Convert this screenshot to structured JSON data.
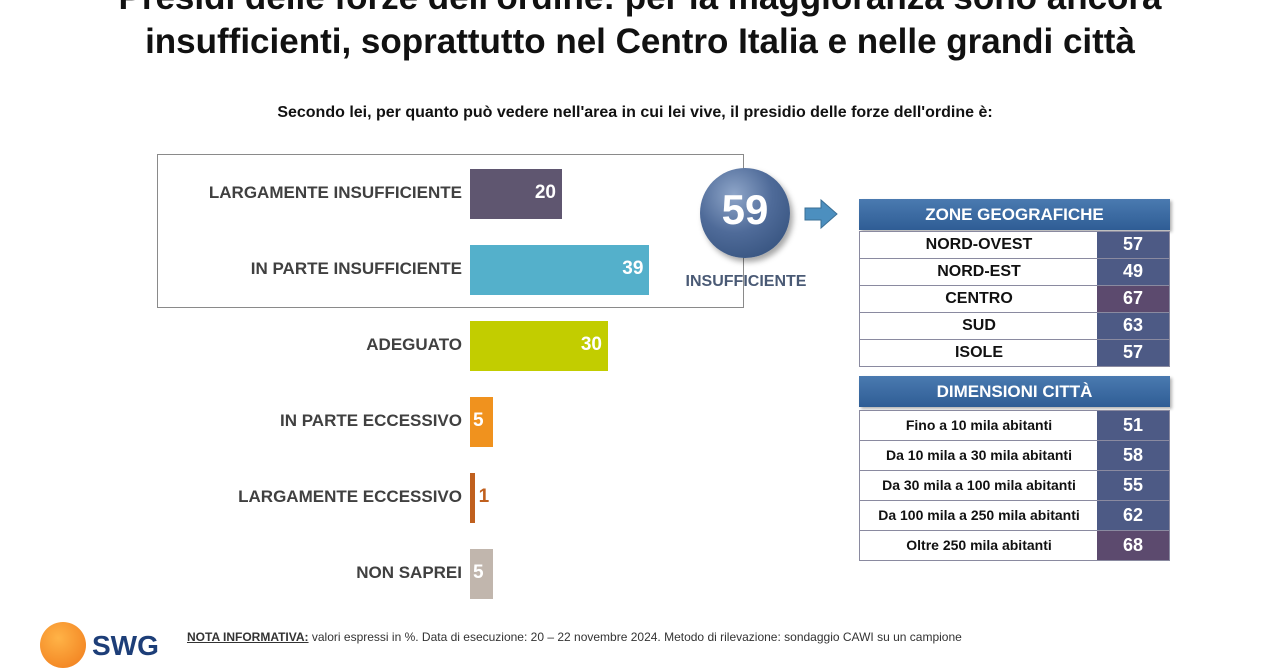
{
  "title": {
    "line1": "Presidi delle forze dell'ordine: per la maggioranza sono ancora",
    "line2": "insufficienti, soprattutto nel Centro Italia e nelle grandi città"
  },
  "question": "Secondo lei, per quanto può vedere nell'area in cui lei vive, il presidio delle forze dell'ordine è:",
  "summary": {
    "value": "59",
    "label": "INSUFFICIENTE"
  },
  "chart_data": {
    "type": "bar",
    "orientation": "horizontal",
    "title": "Secondo lei, per quanto può vedere nell'area in cui lei vive, il presidio delle forze dell'ordine è:",
    "categories": [
      "LARGAMENTE INSUFFICIENTE",
      "IN PARTE INSUFFICIENTE",
      "ADEGUATO",
      "IN PARTE ECCESSIVO",
      "LARGAMENTE ECCESSIVO",
      "NON SAPREI"
    ],
    "values": [
      20,
      39,
      30,
      5,
      1,
      5
    ],
    "value_labels": [
      "20",
      "39",
      "30",
      "5",
      "1",
      "5"
    ],
    "colors": [
      "#5f5670",
      "#54b0cb",
      "#c2cd00",
      "#f0921e",
      "#c0601e",
      "#c1b6ad"
    ],
    "unit": "%",
    "xlim": [
      0,
      45
    ],
    "xlabel": "",
    "ylabel": ""
  },
  "zones": {
    "header": "ZONE GEOGRAFICHE",
    "rows": [
      {
        "label": "NORD-OVEST",
        "value": "57"
      },
      {
        "label": "NORD-EST",
        "value": "49"
      },
      {
        "label": "CENTRO",
        "value": "67"
      },
      {
        "label": "SUD",
        "value": "63"
      },
      {
        "label": "ISOLE",
        "value": "57"
      }
    ]
  },
  "cities": {
    "header": "DIMENSIONI CITTÀ",
    "rows": [
      {
        "label": "Fino a 10 mila abitanti",
        "value": "51"
      },
      {
        "label": "Da 10 mila a 30 mila abitanti",
        "value": "58"
      },
      {
        "label": "Da 30 mila a 100 mila abitanti",
        "value": "55"
      },
      {
        "label": "Da 100 mila a 250 mila abitanti",
        "value": "62"
      },
      {
        "label": "Oltre 250 mila abitanti",
        "value": "68"
      }
    ]
  },
  "colors": {
    "table_value_bg": "#4d5a85",
    "table_value_bg_dark": "#5c4a6e",
    "header_bg": "#2f5d95"
  },
  "footer": {
    "logo_text": "SWG",
    "note_label": "NOTA INFORMATIVA:",
    "note_text": " valori espressi in %. Data di esecuzione: 20 – 22 novembre 2024. Metodo di rilevazione: sondaggio CAWI su un campione"
  }
}
